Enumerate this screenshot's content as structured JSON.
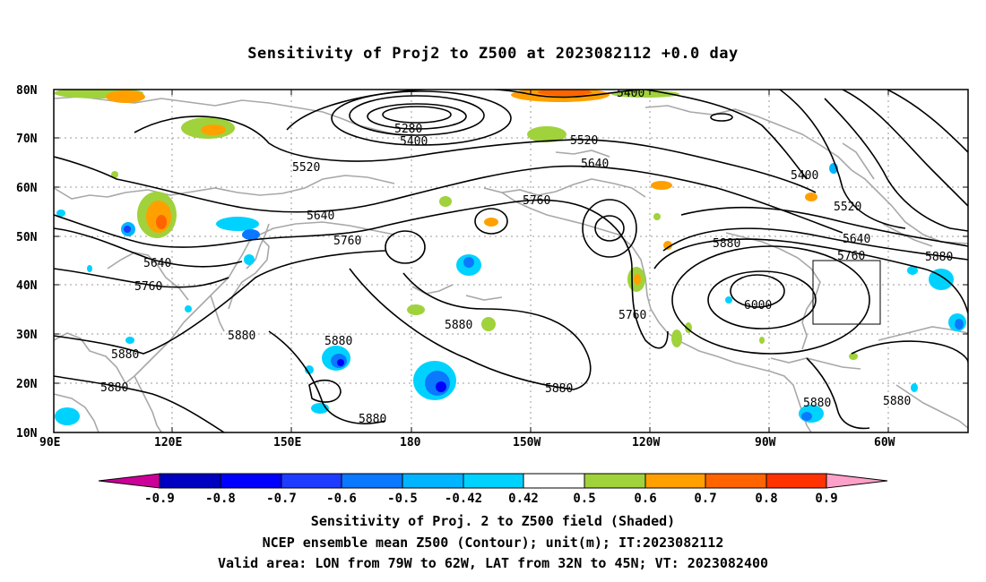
{
  "title": "Sensitivity of Proj2 to Z500 at 2023082112 +0.0 day",
  "lat_labels": [
    "80N",
    "70N",
    "60N",
    "50N",
    "40N",
    "30N",
    "20N",
    "10N"
  ],
  "lon_labels": [
    "90E",
    "120E",
    "150E",
    "180",
    "150W",
    "120W",
    "90W",
    "60W"
  ],
  "colorbar": {
    "labels": [
      "-0.9",
      "-0.8",
      "-0.7",
      "-0.6",
      "-0.5",
      "-0.42",
      "0.42",
      "0.5",
      "0.6",
      "0.7",
      "0.8",
      "0.9"
    ],
    "colors": [
      "#cc0099",
      "#0000c0",
      "#0000ff",
      "#1e3cff",
      "#0a78ff",
      "#00b4ff",
      "#00d2ff",
      "#ffffff",
      "#a0d23c",
      "#ffa000",
      "#ff6400",
      "#ff3200",
      "#ff0000",
      "#ffa0c8"
    ]
  },
  "contour_labels": {
    "c5280": "5280",
    "c5400a": "5400",
    "c5400b": "5400",
    "c5400c": "5400",
    "c5520a": "5520",
    "c5520b": "5520",
    "c5520c": "5520",
    "c5640a": "5640",
    "c5640b": "5640",
    "c5640c": "5640",
    "c5640d": "5640",
    "c5760a": "5760",
    "c5760b": "5760",
    "c5760c": "5760",
    "c5760d": "5760",
    "c5760e": "5760",
    "c5880a": "5880",
    "c5880b": "5880",
    "c5880c": "5880",
    "c5880d": "5880",
    "c5880e": "5880",
    "c5880f": "5880",
    "c5880g": "5880",
    "c5880h": "5880",
    "c5880i": "5880",
    "c5880j": "5880",
    "c5880k": "5880",
    "c6000": "6000"
  },
  "captions": {
    "line1": "Sensitivity of Proj. 2 to Z500 field (Shaded)",
    "line2": "NCEP ensemble mean Z500 (Contour); unit(m); IT:2023082112",
    "line3": "Valid area: LON from 79W to 62W, LAT from 32N to 45N; VT: 2023082400"
  }
}
